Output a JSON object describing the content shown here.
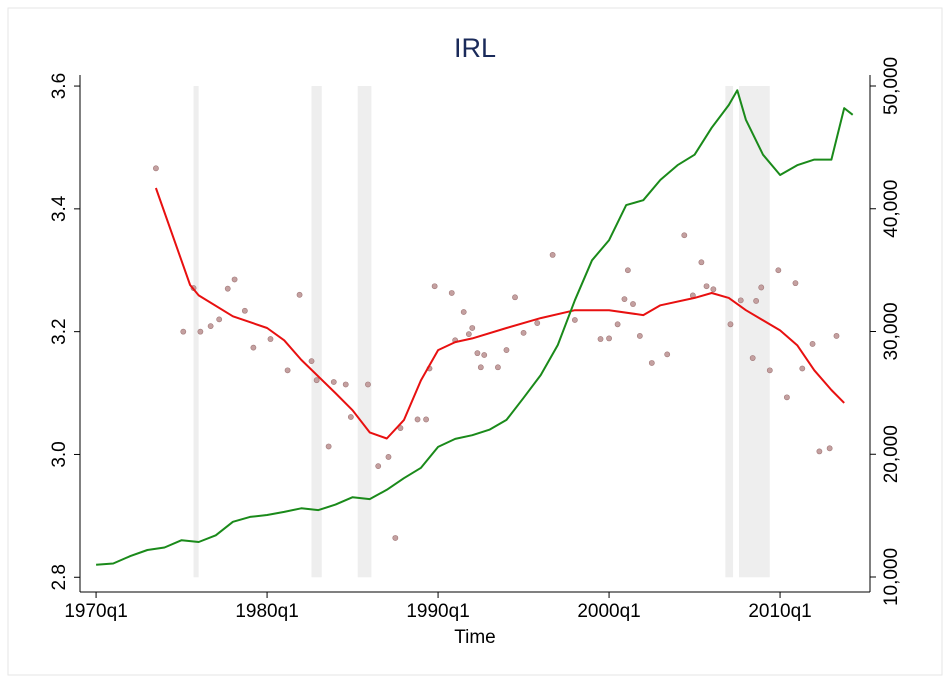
{
  "chart_data": {
    "type": "line",
    "title": "IRL",
    "x_label": "Time",
    "xlim": [
      1969.06,
      2015.26
    ],
    "xticks": [
      {
        "value": 1970,
        "label": "1970q1"
      },
      {
        "value": 1980,
        "label": "1980q1"
      },
      {
        "value": 1990,
        "label": "1990q1"
      },
      {
        "value": 2000,
        "label": "2000q1"
      },
      {
        "value": 2010,
        "label": "2010q1"
      }
    ],
    "ylim": [
      2.776,
      3.618
    ],
    "yticks": [
      2.8,
      {
        "value": 3,
        "label": "3.0"
      },
      3.2,
      3.4,
      3.6
    ],
    "y2lim": [
      8778,
      50896
    ],
    "y2ticks": [
      {
        "value": 10000,
        "label": "10,000"
      },
      {
        "value": 20000,
        "label": "20,000"
      },
      {
        "value": 30000,
        "label": "30,000"
      },
      {
        "value": 40000,
        "label": "40,000"
      },
      {
        "value": 50000,
        "label": "50,000"
      }
    ],
    "shaded_periods": [
      [
        1975.7,
        1976.0
      ],
      [
        1982.6,
        1983.2
      ],
      [
        1985.3,
        1986.1
      ],
      [
        2006.8,
        2007.25
      ],
      [
        2007.6,
        2009.4
      ]
    ],
    "shade_color": "#eeeeee",
    "series": [
      {
        "kind": "scatter",
        "color": "#c4a0a0",
        "axis": "y",
        "x": [
          1973.5,
          1975.1,
          1975.7,
          1976.1,
          1976.7,
          1977.2,
          1977.7,
          1978.1,
          1978.7,
          1979.2,
          1980.2,
          1981.2,
          1981.9,
          1982.6,
          1982.9,
          1983.6,
          1983.9,
          1984.6,
          1984.9,
          1985.9,
          1986.5,
          1987.1,
          1987.5,
          1987.8,
          1988.8,
          1989.3,
          1989.5,
          1989.8,
          1990.8,
          1991.0,
          1991.5,
          1991.8,
          1992.0,
          1992.3,
          1992.5,
          1992.7,
          1993.5,
          1994.0,
          1994.5,
          1995.0,
          1995.8,
          1996.7,
          1998.0,
          1999.5,
          2000.0,
          2000.5,
          2000.9,
          2001.1,
          2001.4,
          2001.8,
          2002.5,
          2003.4,
          2004.4,
          2004.9,
          2005.4,
          2005.7,
          2006.1,
          2007.1,
          2007.7,
          2008.4,
          2008.6,
          2008.9,
          2009.4,
          2009.9,
          2010.4,
          2010.9,
          2011.3,
          2011.9,
          2012.3,
          2012.9,
          2013.3
        ],
        "values": [
          3.466,
          3.2,
          3.271,
          3.2,
          3.209,
          3.22,
          3.27,
          3.285,
          3.234,
          3.174,
          3.188,
          3.137,
          3.26,
          3.152,
          3.121,
          3.013,
          3.118,
          3.114,
          3.061,
          3.114,
          2.981,
          2.996,
          2.864,
          3.043,
          3.057,
          3.057,
          3.14,
          3.274,
          3.263,
          3.186,
          3.232,
          3.196,
          3.206,
          3.165,
          3.142,
          3.162,
          3.142,
          3.17,
          3.256,
          3.198,
          3.214,
          3.325,
          3.219,
          3.188,
          3.189,
          3.212,
          3.253,
          3.3,
          3.245,
          3.193,
          3.149,
          3.163,
          3.357,
          3.259,
          3.313,
          3.274,
          3.269,
          3.212,
          3.251,
          3.157,
          3.25,
          3.272,
          3.137,
          3.3,
          3.093,
          3.279,
          3.14,
          3.18,
          3.005,
          3.01,
          3.193
        ]
      },
      {
        "kind": "line",
        "color": "#e81010",
        "axis": "y",
        "x": [
          1973.5,
          1975.5,
          1976,
          1978,
          1980,
          1981,
          1982,
          1984,
          1985,
          1986,
          1987,
          1988,
          1989,
          1990,
          1991,
          1992,
          1994,
          1996,
          1998,
          2000,
          2002,
          2003,
          2005,
          2006,
          2007,
          2008,
          2010,
          2011,
          2012,
          2013,
          2013.75
        ],
        "values": [
          3.434,
          3.276,
          3.259,
          3.225,
          3.206,
          3.186,
          3.154,
          3.1,
          3.072,
          3.036,
          3.026,
          3.056,
          3.121,
          3.17,
          3.183,
          3.189,
          3.206,
          3.222,
          3.235,
          3.235,
          3.227,
          3.243,
          3.255,
          3.263,
          3.255,
          3.235,
          3.202,
          3.178,
          3.137,
          3.105,
          3.084
        ]
      },
      {
        "kind": "line",
        "color": "#1a8a1a",
        "axis": "y2",
        "x": [
          1970,
          1971,
          1972,
          1973,
          1974,
          1975,
          1976,
          1977,
          1978,
          1979,
          1980,
          1981,
          1982,
          1983,
          1984,
          1985,
          1986,
          1987,
          1988,
          1989,
          1990,
          1991,
          1992,
          1993,
          1994,
          1995,
          1996,
          1997,
          1998,
          1999,
          2000,
          2001,
          2002,
          2003,
          2004,
          2005,
          2006,
          2007,
          2007.5,
          2008,
          2009,
          2010,
          2011,
          2012,
          2013,
          2013.75,
          2014.25
        ],
        "values": [
          11000,
          11100,
          11700,
          12200,
          12400,
          13000,
          12850,
          13400,
          14500,
          14900,
          15050,
          15300,
          15600,
          15450,
          15900,
          16500,
          16350,
          17100,
          18050,
          18900,
          20600,
          21250,
          21550,
          22000,
          22800,
          24600,
          26450,
          28900,
          32550,
          35800,
          37450,
          40300,
          40700,
          42350,
          43550,
          44400,
          46600,
          48450,
          49650,
          47250,
          44400,
          42750,
          43550,
          44000,
          44000,
          48200,
          47650
        ]
      }
    ]
  }
}
